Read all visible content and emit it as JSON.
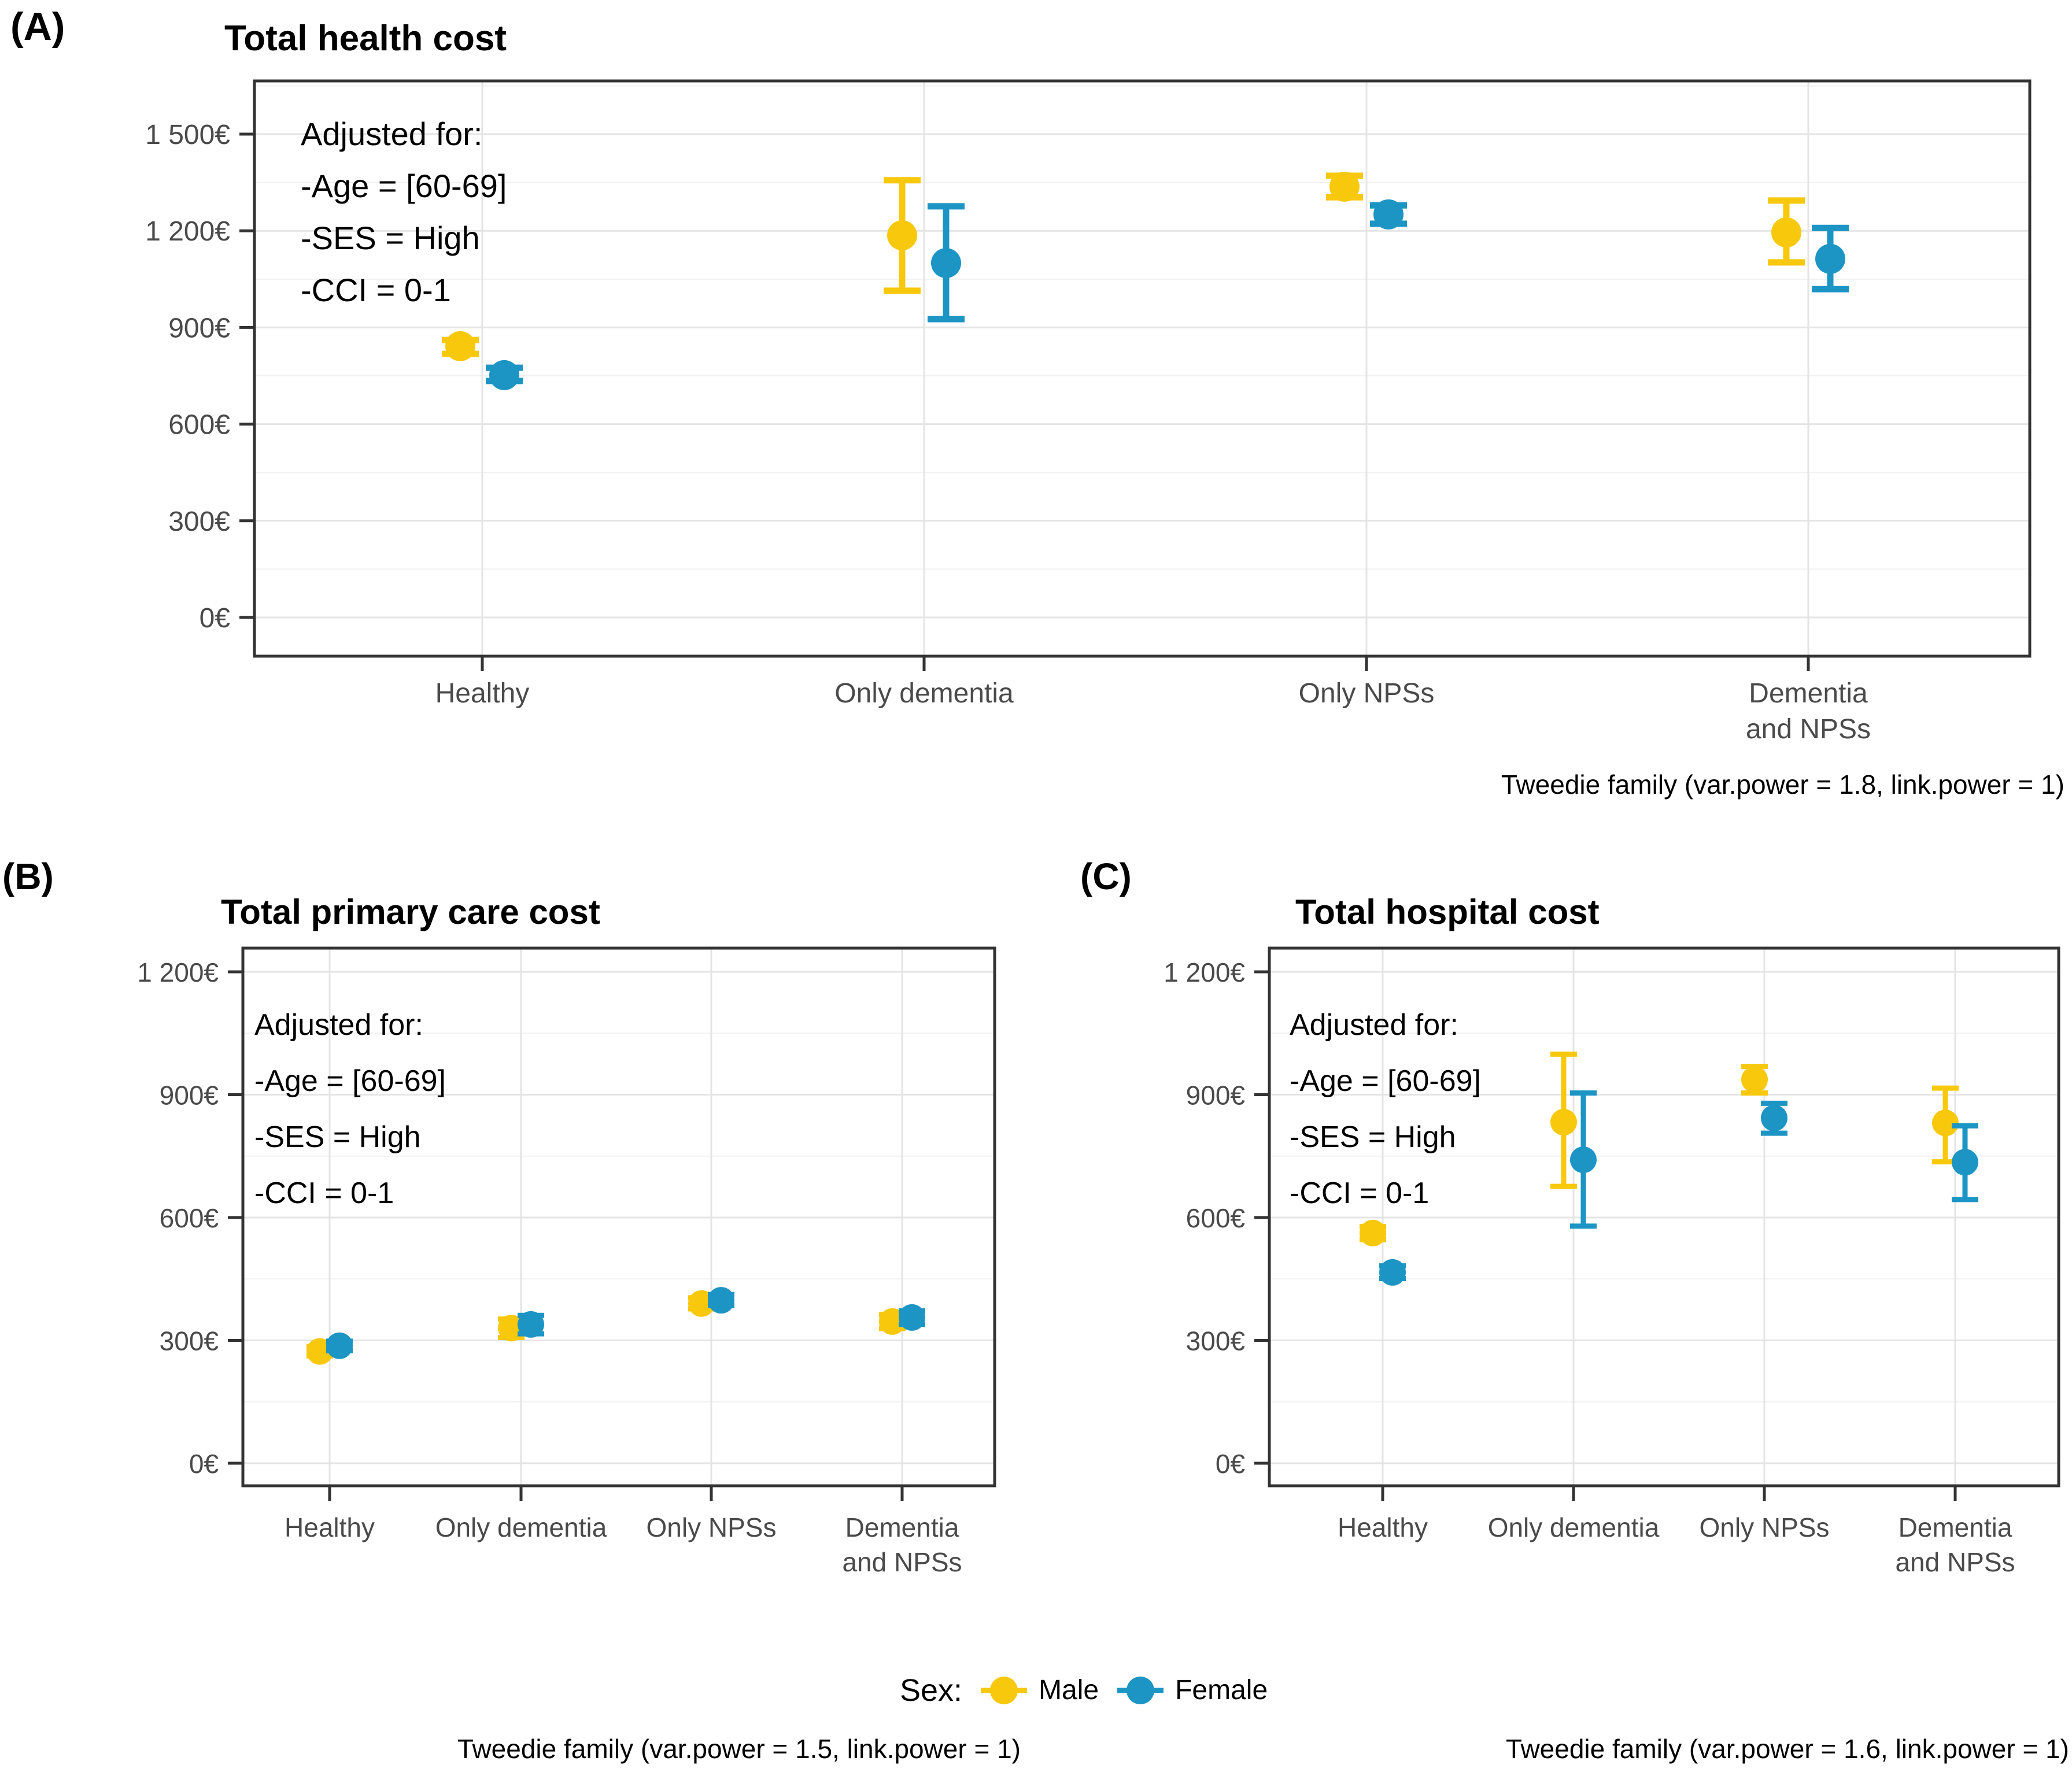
{
  "page": {
    "background": "#ffffff"
  },
  "colors": {
    "male": "#F8C80D",
    "female": "#1C95C5",
    "grid_major": "#E4E4E4",
    "grid_minor": "#F1F1F1",
    "border": "#333333",
    "tick_text": "#4a4a4a"
  },
  "legend": {
    "label": "Sex:",
    "entries": [
      {
        "name": "Male",
        "color": "#F8C80D"
      },
      {
        "name": "Female",
        "color": "#1C95C5"
      }
    ]
  },
  "chart_data": [
    {
      "id": "a",
      "type": "pointrange",
      "tag": "(A)",
      "title": "Total health cost",
      "caption": "Tweedie family (var.power = 1.8, link.power = 1)",
      "ylim": [
        0,
        1500
      ],
      "grid": true,
      "minor_step": 150,
      "yticks": [
        {
          "value": 0,
          "label": "0€"
        },
        {
          "value": 300,
          "label": "300€"
        },
        {
          "value": 600,
          "label": "600€"
        },
        {
          "value": 900,
          "label": "900€"
        },
        {
          "value": 1200,
          "label": "1 200€"
        },
        {
          "value": 1500,
          "label": "1 500€"
        }
      ],
      "categories": [
        [
          "Healthy"
        ],
        [
          "Only dementia"
        ],
        [
          "Only NPSs"
        ],
        [
          "Dementia",
          "and NPSs"
        ]
      ],
      "annotation": [
        "Adjusted for:",
        "-Age = [60-69]",
        "-SES = High",
        "-CCI = 0-1"
      ],
      "series": [
        {
          "name": "Male",
          "color": "#F8C80D",
          "points": [
            {
              "y": 842,
              "lo": 818,
              "hi": 861
            },
            {
              "y": 1186,
              "lo": 1014,
              "hi": 1357
            },
            {
              "y": 1337,
              "lo": 1304,
              "hi": 1371
            },
            {
              "y": 1195,
              "lo": 1102,
              "hi": 1294
            }
          ]
        },
        {
          "name": "Female",
          "color": "#1C95C5",
          "points": [
            {
              "y": 752,
              "lo": 734,
              "hi": 775
            },
            {
              "y": 1100,
              "lo": 926,
              "hi": 1276
            },
            {
              "y": 1251,
              "lo": 1222,
              "hi": 1279
            },
            {
              "y": 1113,
              "lo": 1019,
              "hi": 1209
            }
          ]
        }
      ]
    },
    {
      "id": "b",
      "type": "pointrange",
      "tag": "(B)",
      "title": "Total primary care cost",
      "caption": "Tweedie family (var.power = 1.5, link.power = 1)",
      "ylim": [
        0,
        1200
      ],
      "grid": true,
      "minor_step": 150,
      "yticks": [
        {
          "value": 0,
          "label": "0€"
        },
        {
          "value": 300,
          "label": "300€"
        },
        {
          "value": 600,
          "label": "600€"
        },
        {
          "value": 900,
          "label": "900€"
        },
        {
          "value": 1200,
          "label": "1 200€"
        }
      ],
      "categories": [
        [
          "Healthy"
        ],
        [
          "Only dementia"
        ],
        [
          "Only NPSs"
        ],
        [
          "Dementia",
          "and NPSs"
        ]
      ],
      "annotation": [
        "Adjusted for:",
        "-Age = [60-69]",
        "-SES = High",
        "-CCI = 0-1"
      ],
      "series": [
        {
          "name": "Male",
          "color": "#F8C80D",
          "points": [
            {
              "y": 273,
              "lo": 262,
              "hi": 285
            },
            {
              "y": 330,
              "lo": 307,
              "hi": 352
            },
            {
              "y": 390,
              "lo": 377,
              "hi": 404
            },
            {
              "y": 346,
              "lo": 329,
              "hi": 363
            }
          ]
        },
        {
          "name": "Female",
          "color": "#1C95C5",
          "points": [
            {
              "y": 287,
              "lo": 275,
              "hi": 298
            },
            {
              "y": 339,
              "lo": 316,
              "hi": 361
            },
            {
              "y": 398,
              "lo": 385,
              "hi": 412
            },
            {
              "y": 356,
              "lo": 339,
              "hi": 372
            }
          ]
        }
      ]
    },
    {
      "id": "c",
      "type": "pointrange",
      "tag": "(C)",
      "title": "Total hospital cost",
      "caption": "Tweedie family (var.power = 1.6, link.power = 1)",
      "ylim": [
        0,
        1200
      ],
      "grid": true,
      "minor_step": 150,
      "yticks": [
        {
          "value": 0,
          "label": "0€"
        },
        {
          "value": 300,
          "label": "300€"
        },
        {
          "value": 600,
          "label": "600€"
        },
        {
          "value": 900,
          "label": "900€"
        },
        {
          "value": 1200,
          "label": "1 200€"
        }
      ],
      "categories": [
        [
          "Healthy"
        ],
        [
          "Only dementia"
        ],
        [
          "Only NPSs"
        ],
        [
          "Dementia",
          "and NPSs"
        ]
      ],
      "annotation": [
        "Adjusted for:",
        "-Age = [60-69]",
        "-SES = High",
        "-CCI = 0-1"
      ],
      "series": [
        {
          "name": "Male",
          "color": "#F8C80D",
          "points": [
            {
              "y": 562,
              "lo": 546,
              "hi": 578
            },
            {
              "y": 833,
              "lo": 676,
              "hi": 999
            },
            {
              "y": 937,
              "lo": 904,
              "hi": 969
            },
            {
              "y": 831,
              "lo": 736,
              "hi": 916
            }
          ]
        },
        {
          "name": "Female",
          "color": "#1C95C5",
          "points": [
            {
              "y": 466,
              "lo": 451,
              "hi": 482
            },
            {
              "y": 741,
              "lo": 579,
              "hi": 904
            },
            {
              "y": 843,
              "lo": 806,
              "hi": 879
            },
            {
              "y": 735,
              "lo": 644,
              "hi": 824
            }
          ]
        }
      ]
    }
  ]
}
